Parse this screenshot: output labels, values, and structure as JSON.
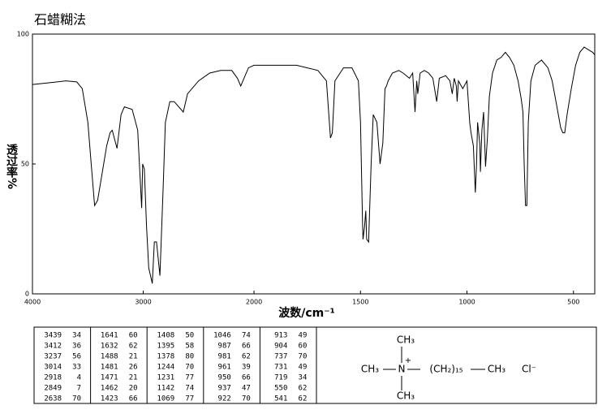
{
  "chart_data": {
    "type": "line",
    "title": "石蜡糊法",
    "x_label": "波数/cm⁻¹",
    "y_label": "透过率%",
    "xlim": [
      4000,
      400
    ],
    "x_scale_break": 2000,
    "xticks": [
      4000,
      3000,
      2000,
      1500,
      1000,
      500
    ],
    "ylim": [
      0,
      100
    ],
    "yticks": [
      0,
      50,
      100
    ],
    "color": "#000000",
    "x": [
      4000,
      3800,
      3700,
      3600,
      3550,
      3500,
      3470,
      3439,
      3412,
      3380,
      3330,
      3300,
      3280,
      3237,
      3200,
      3170,
      3100,
      3050,
      3014,
      3005,
      2990,
      2970,
      2950,
      2918,
      2900,
      2880,
      2849,
      2820,
      2800,
      2760,
      2720,
      2638,
      2600,
      2500,
      2400,
      2300,
      2200,
      2150,
      2120,
      2100,
      2050,
      2000,
      1900,
      1800,
      1750,
      1700,
      1660,
      1641,
      1632,
      1620,
      1580,
      1540,
      1510,
      1500,
      1490,
      1488,
      1481,
      1475,
      1471,
      1462,
      1450,
      1440,
      1423,
      1408,
      1395,
      1385,
      1378,
      1370,
      1350,
      1320,
      1300,
      1270,
      1255,
      1244,
      1236,
      1231,
      1220,
      1200,
      1180,
      1160,
      1142,
      1130,
      1100,
      1080,
      1069,
      1060,
      1050,
      1046,
      1040,
      1020,
      1000,
      987,
      981,
      970,
      961,
      955,
      950,
      940,
      937,
      930,
      922,
      913,
      904,
      895,
      880,
      860,
      840,
      820,
      800,
      780,
      760,
      745,
      737,
      731,
      725,
      719,
      712,
      700,
      680,
      650,
      620,
      600,
      580,
      560,
      550,
      541,
      530,
      510,
      490,
      470,
      450,
      430,
      410,
      400
    ],
    "values": [
      80.6,
      81.5,
      82,
      81.6,
      79,
      66,
      50,
      34,
      36,
      44,
      57,
      62,
      63,
      56,
      69,
      72,
      71,
      63,
      33,
      50,
      48,
      26,
      10,
      4,
      20,
      20,
      7,
      41,
      66,
      74,
      74,
      70,
      77,
      82,
      85,
      86,
      86,
      83,
      80,
      82,
      87,
      88,
      88,
      88,
      87,
      86,
      82,
      60,
      62,
      82,
      87,
      87,
      82,
      66,
      26,
      21,
      26,
      32,
      21,
      20,
      50,
      69,
      66,
      50,
      58,
      79,
      80,
      82,
      85,
      86,
      85,
      83,
      85,
      70,
      82,
      77,
      85,
      86,
      85,
      83,
      74,
      83,
      84,
      82,
      77,
      83,
      80,
      74,
      82,
      79,
      82,
      66,
      62,
      57,
      39,
      50,
      66,
      58,
      47,
      63,
      70,
      49,
      60,
      76,
      85,
      90,
      91,
      93,
      91,
      88,
      82,
      75,
      70,
      49,
      34,
      34,
      66,
      82,
      88,
      90,
      87,
      82,
      73,
      64,
      62,
      62,
      69,
      79,
      88,
      93,
      95,
      94,
      93,
      92
    ]
  },
  "table": {
    "columns": [
      [
        [
          3439,
          34
        ],
        [
          3412,
          36
        ],
        [
          3237,
          56
        ],
        [
          3014,
          33
        ],
        [
          2918,
          4
        ],
        [
          2849,
          7
        ],
        [
          2638,
          70
        ]
      ],
      [
        [
          1641,
          60
        ],
        [
          1632,
          62
        ],
        [
          1488,
          21
        ],
        [
          1481,
          26
        ],
        [
          1471,
          21
        ],
        [
          1462,
          20
        ],
        [
          1423,
          66
        ]
      ],
      [
        [
          1408,
          50
        ],
        [
          1395,
          58
        ],
        [
          1378,
          80
        ],
        [
          1244,
          70
        ],
        [
          1231,
          77
        ],
        [
          1142,
          74
        ],
        [
          1069,
          77
        ]
      ],
      [
        [
          1046,
          74
        ],
        [
          987,
          66
        ],
        [
          981,
          62
        ],
        [
          961,
          39
        ],
        [
          950,
          66
        ],
        [
          937,
          47
        ],
        [
          922,
          70
        ]
      ],
      [
        [
          913,
          49
        ],
        [
          904,
          60
        ],
        [
          737,
          70
        ],
        [
          731,
          49
        ],
        [
          719,
          34
        ],
        [
          550,
          62
        ],
        [
          541,
          62
        ]
      ]
    ]
  },
  "structure": {
    "top": "CH₃",
    "left": "CH₃",
    "center": "N",
    "charge": "+",
    "chain": "(CH₂)₁₅",
    "end": "CH₃",
    "bottom": "CH₃",
    "anion": "Cl⁻"
  }
}
